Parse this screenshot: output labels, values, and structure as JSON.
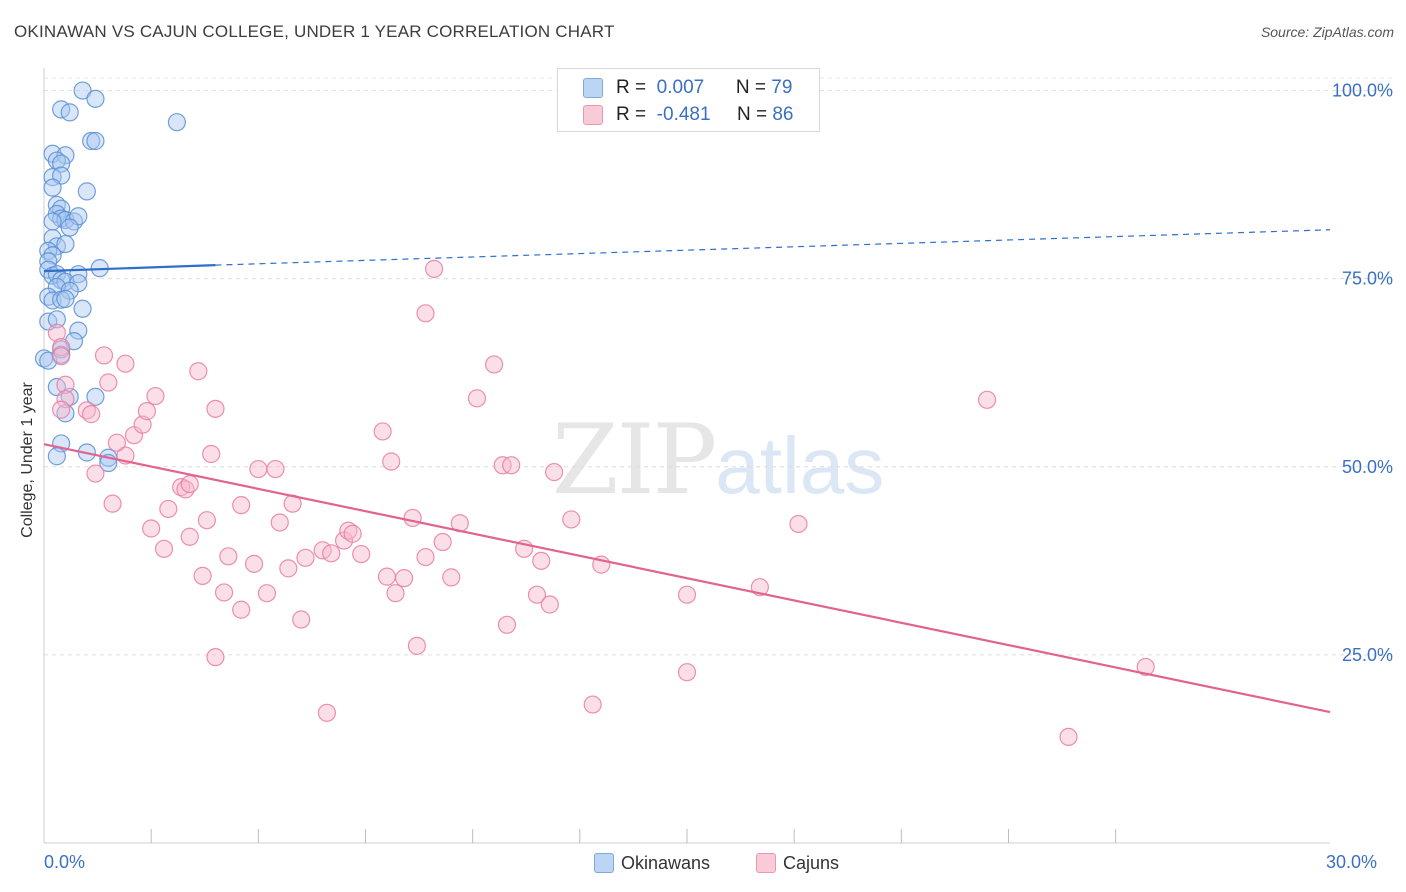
{
  "title": "OKINAWAN VS CAJUN COLLEGE, UNDER 1 YEAR CORRELATION CHART",
  "source": "Source: ZipAtlas.com",
  "watermark": {
    "zip": "ZIP",
    "atlas": "atlas"
  },
  "stats": [
    {
      "r_label": "R =",
      "r_value": "0.007",
      "n_label": "N =",
      "n_value": "79",
      "color": "#a8c8f0"
    },
    {
      "r_label": "R =",
      "r_value": "-0.481",
      "n_label": "N =",
      "n_value": "86",
      "color": "#f6b8cc"
    }
  ],
  "legend": [
    {
      "label": "Okinawans",
      "color": "#a8c8f0"
    },
    {
      "label": "Cajuns",
      "color": "#f6b8cc"
    }
  ],
  "chart_data": {
    "type": "scatter",
    "title": "OKINAWAN VS CAJUN COLLEGE, UNDER 1 YEAR CORRELATION CHART",
    "xlabel": "",
    "ylabel": "College, Under 1 year",
    "xlim": [
      0,
      30
    ],
    "ylim": [
      0,
      103
    ],
    "x_tick_labels": [
      "0.0%",
      "30.0%"
    ],
    "y_ticks": [
      25,
      50,
      75,
      100
    ],
    "y_tick_labels": [
      "25.0%",
      "50.0%",
      "75.0%",
      "100.0%"
    ],
    "grid": true,
    "series": [
      {
        "name": "Okinawans",
        "color": "#5b8fd6",
        "fill": "#a8c8f0",
        "trend": {
          "x0": 0,
          "y0": 76.0,
          "x1": 4.0,
          "y1": 76.8,
          "dash_x1": 30,
          "dash_y1": 81.5,
          "color": "#2f6fc9"
        },
        "points": [
          [
            0.9,
            100.0
          ],
          [
            1.2,
            98.9
          ],
          [
            0.4,
            97.5
          ],
          [
            0.6,
            97.1
          ],
          [
            3.1,
            95.8
          ],
          [
            1.1,
            93.3
          ],
          [
            1.2,
            93.3
          ],
          [
            0.2,
            91.6
          ],
          [
            0.5,
            91.4
          ],
          [
            0.3,
            90.7
          ],
          [
            0.4,
            90.3
          ],
          [
            0.2,
            88.5
          ],
          [
            0.4,
            88.7
          ],
          [
            0.2,
            87.1
          ],
          [
            1.0,
            86.6
          ],
          [
            0.3,
            84.8
          ],
          [
            0.4,
            84.3
          ],
          [
            0.3,
            83.6
          ],
          [
            0.4,
            83.0
          ],
          [
            0.5,
            82.8
          ],
          [
            0.7,
            82.6
          ],
          [
            0.2,
            82.6
          ],
          [
            0.8,
            83.3
          ],
          [
            0.6,
            81.8
          ],
          [
            0.2,
            80.4
          ],
          [
            0.3,
            79.3
          ],
          [
            0.5,
            79.6
          ],
          [
            0.1,
            78.7
          ],
          [
            0.2,
            78.1
          ],
          [
            0.1,
            77.3
          ],
          [
            1.3,
            76.4
          ],
          [
            0.1,
            76.2
          ],
          [
            0.2,
            75.4
          ],
          [
            0.3,
            75.6
          ],
          [
            0.8,
            75.6
          ],
          [
            0.4,
            74.8
          ],
          [
            0.5,
            74.6
          ],
          [
            0.8,
            74.4
          ],
          [
            0.3,
            73.9
          ],
          [
            0.6,
            73.4
          ],
          [
            0.1,
            72.6
          ],
          [
            0.2,
            72.1
          ],
          [
            0.4,
            72.2
          ],
          [
            0.5,
            72.3
          ],
          [
            0.9,
            71.0
          ],
          [
            0.1,
            69.3
          ],
          [
            0.3,
            69.6
          ],
          [
            0.8,
            68.1
          ],
          [
            0.7,
            66.7
          ],
          [
            0.4,
            65.6
          ],
          [
            0.0,
            64.4
          ],
          [
            0.1,
            64.1
          ],
          [
            0.4,
            64.9
          ],
          [
            0.3,
            60.6
          ],
          [
            1.2,
            59.3
          ],
          [
            0.6,
            59.3
          ],
          [
            0.5,
            57.1
          ],
          [
            0.4,
            53.1
          ],
          [
            1.0,
            51.9
          ],
          [
            0.3,
            51.4
          ],
          [
            1.5,
            51.2
          ],
          [
            1.5,
            50.5
          ]
        ]
      },
      {
        "name": "Cajuns",
        "color": "#e97da3",
        "fill": "#f6b8cc",
        "trend": {
          "x0": 0,
          "y0": 53.0,
          "x1": 30,
          "y1": 17.4,
          "color": "#e0648f"
        },
        "points": [
          [
            0.3,
            67.8
          ],
          [
            0.4,
            65.9
          ],
          [
            0.4,
            64.7
          ],
          [
            0.5,
            60.9
          ],
          [
            0.5,
            59.0
          ],
          [
            0.4,
            57.6
          ],
          [
            1.0,
            57.5
          ],
          [
            1.1,
            57.0
          ],
          [
            1.4,
            64.8
          ],
          [
            1.5,
            61.2
          ],
          [
            1.9,
            63.7
          ],
          [
            1.2,
            49.1
          ],
          [
            1.9,
            51.5
          ],
          [
            1.7,
            53.2
          ],
          [
            2.1,
            54.2
          ],
          [
            2.3,
            55.6
          ],
          [
            2.4,
            57.4
          ],
          [
            2.6,
            59.4
          ],
          [
            3.6,
            62.7
          ],
          [
            4.0,
            57.7
          ],
          [
            3.9,
            51.7
          ],
          [
            1.6,
            45.1
          ],
          [
            2.5,
            41.8
          ],
          [
            2.8,
            39.1
          ],
          [
            2.9,
            44.4
          ],
          [
            3.2,
            47.3
          ],
          [
            3.3,
            47.0
          ],
          [
            3.4,
            47.7
          ],
          [
            3.4,
            40.7
          ],
          [
            3.7,
            35.5
          ],
          [
            3.8,
            42.9
          ],
          [
            4.0,
            24.7
          ],
          [
            4.2,
            33.3
          ],
          [
            4.3,
            38.1
          ],
          [
            4.6,
            44.9
          ],
          [
            4.6,
            31.0
          ],
          [
            4.9,
            37.1
          ],
          [
            5.0,
            49.7
          ],
          [
            5.2,
            33.2
          ],
          [
            5.4,
            49.7
          ],
          [
            5.5,
            42.6
          ],
          [
            5.7,
            36.5
          ],
          [
            5.8,
            45.1
          ],
          [
            6.0,
            29.7
          ],
          [
            6.1,
            37.9
          ],
          [
            6.5,
            38.9
          ],
          [
            6.6,
            17.3
          ],
          [
            6.7,
            38.5
          ],
          [
            7.0,
            40.2
          ],
          [
            7.1,
            41.5
          ],
          [
            7.2,
            41.1
          ],
          [
            7.4,
            38.4
          ],
          [
            7.9,
            54.7
          ],
          [
            8.0,
            35.4
          ],
          [
            8.1,
            50.7
          ],
          [
            8.2,
            33.2
          ],
          [
            8.4,
            35.2
          ],
          [
            8.6,
            43.2
          ],
          [
            8.7,
            26.2
          ],
          [
            8.9,
            38.0
          ],
          [
            8.9,
            70.4
          ],
          [
            9.1,
            76.3
          ],
          [
            9.3,
            40.0
          ],
          [
            9.5,
            35.3
          ],
          [
            9.7,
            42.5
          ],
          [
            10.1,
            59.1
          ],
          [
            10.5,
            63.6
          ],
          [
            10.7,
            50.2
          ],
          [
            10.8,
            29.0
          ],
          [
            10.9,
            50.2
          ],
          [
            11.2,
            39.1
          ],
          [
            11.5,
            33.0
          ],
          [
            11.6,
            37.5
          ],
          [
            11.8,
            31.7
          ],
          [
            11.9,
            49.3
          ],
          [
            12.3,
            43.0
          ],
          [
            12.8,
            18.4
          ],
          [
            13.0,
            37.0
          ],
          [
            15.0,
            33.0
          ],
          [
            15.0,
            22.7
          ],
          [
            16.7,
            34.0
          ],
          [
            17.6,
            42.4
          ],
          [
            22.0,
            58.9
          ],
          [
            23.9,
            14.1
          ],
          [
            25.7,
            23.4
          ]
        ]
      }
    ]
  }
}
